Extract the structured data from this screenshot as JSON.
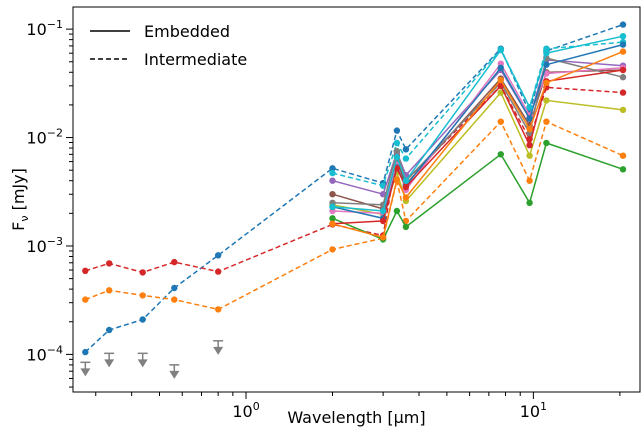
{
  "chart_data": {
    "type": "line",
    "xscale": "log",
    "yscale": "log",
    "xlim": [
      0.25,
      23.5
    ],
    "ylim": [
      4.5e-05,
      0.16
    ],
    "xlabel": "Wavelength [μm]",
    "ylabel": "Fν [mJy]",
    "xticks": [
      {
        "value": 1,
        "label": "10^0"
      },
      {
        "value": 10,
        "label": "10^1"
      }
    ],
    "yticks": [
      {
        "value": 0.0001,
        "label": "10^-4"
      },
      {
        "value": 0.001,
        "label": "10^-3"
      },
      {
        "value": 0.01,
        "label": "10^-2"
      },
      {
        "value": 0.1,
        "label": "10^-1"
      }
    ],
    "legend": {
      "position": "top-left",
      "entries": [
        {
          "label": "Embedded",
          "style": "solid"
        },
        {
          "label": "Intermediate",
          "style": "dashed"
        }
      ]
    },
    "upper_limits": {
      "color": "#808080",
      "points": [
        [
          0.276,
          7.6e-05
        ],
        [
          0.334,
          9.2e-05
        ],
        [
          0.437,
          9.2e-05
        ],
        [
          0.563,
          7.2e-05
        ],
        [
          0.8,
          0.00012
        ]
      ]
    },
    "series": [
      {
        "color": "#1f77b4",
        "style": "dashed",
        "points": [
          [
            0.276,
            0.000105
          ],
          [
            0.334,
            0.000168
          ],
          [
            0.437,
            0.00021
          ],
          [
            0.563,
            0.00041
          ],
          [
            0.8,
            0.00082
          ],
          [
            2.0,
            0.0052
          ],
          [
            3.0,
            0.0038
          ],
          [
            3.35,
            0.0116
          ],
          [
            3.6,
            0.0078
          ],
          [
            7.7,
            0.066
          ],
          [
            9.7,
            0.017
          ],
          [
            11.1,
            0.063
          ],
          [
            20.5,
            0.11
          ]
        ]
      },
      {
        "color": "#d62728",
        "style": "dashed",
        "points": [
          [
            0.276,
            0.00059
          ],
          [
            0.334,
            0.00069
          ],
          [
            0.437,
            0.00057
          ],
          [
            0.563,
            0.00071
          ],
          [
            0.8,
            0.00058
          ],
          [
            2.0,
            0.00158
          ],
          [
            3.0,
            0.00125
          ],
          [
            3.35,
            0.0068
          ],
          [
            3.6,
            0.004
          ],
          [
            7.7,
            0.03
          ],
          [
            9.7,
            0.0097
          ],
          [
            11.1,
            0.029
          ],
          [
            20.5,
            0.026
          ]
        ]
      },
      {
        "color": "#ff7f0e",
        "style": "dashed",
        "points": [
          [
            0.276,
            0.00032
          ],
          [
            0.334,
            0.00039
          ],
          [
            0.437,
            0.00035
          ],
          [
            0.563,
            0.00032
          ],
          [
            0.8,
            0.00026
          ],
          [
            2.0,
            0.00093
          ],
          [
            3.0,
            0.00118
          ],
          [
            3.35,
            0.004
          ],
          [
            3.6,
            0.0017
          ],
          [
            7.7,
            0.014
          ],
          [
            9.7,
            0.004
          ],
          [
            11.1,
            0.014
          ],
          [
            20.5,
            0.0068
          ]
        ]
      },
      {
        "color": "#17becf",
        "style": "dashed",
        "points": [
          [
            2.0,
            0.0047
          ],
          [
            3.0,
            0.0036
          ],
          [
            3.35,
            0.0089
          ],
          [
            3.6,
            0.0064
          ],
          [
            7.7,
            0.065
          ],
          [
            9.7,
            0.019
          ],
          [
            11.1,
            0.066
          ],
          [
            20.5,
            0.076
          ]
        ]
      },
      {
        "color": "#2ca02c",
        "style": "solid",
        "points": [
          [
            2.0,
            0.0018
          ],
          [
            3.0,
            0.00115
          ],
          [
            3.35,
            0.0021
          ],
          [
            3.6,
            0.0015
          ],
          [
            7.7,
            0.007
          ],
          [
            9.7,
            0.0025
          ],
          [
            11.1,
            0.0089
          ],
          [
            20.5,
            0.0051
          ]
        ]
      },
      {
        "color": "#bcbd22",
        "style": "solid",
        "points": [
          [
            2.0,
            0.0024
          ],
          [
            3.0,
            0.00195
          ],
          [
            3.35,
            0.0048
          ],
          [
            3.6,
            0.0026
          ],
          [
            7.7,
            0.026
          ],
          [
            9.7,
            0.0068
          ],
          [
            11.1,
            0.022
          ],
          [
            20.5,
            0.018
          ]
        ]
      },
      {
        "color": "#9467bd",
        "style": "solid",
        "points": [
          [
            2.0,
            0.004
          ],
          [
            3.0,
            0.003
          ],
          [
            3.35,
            0.0073
          ],
          [
            3.6,
            0.0045
          ],
          [
            7.7,
            0.042
          ],
          [
            9.7,
            0.015
          ],
          [
            11.1,
            0.052
          ],
          [
            20.5,
            0.046
          ]
        ]
      },
      {
        "color": "#8c564b",
        "style": "solid",
        "points": [
          [
            2.0,
            0.003
          ],
          [
            3.0,
            0.0022
          ],
          [
            3.35,
            0.0061
          ],
          [
            3.6,
            0.0037
          ],
          [
            7.7,
            0.035
          ],
          [
            9.7,
            0.013
          ],
          [
            11.1,
            0.04
          ],
          [
            20.5,
            0.042
          ]
        ]
      },
      {
        "color": "#e377c2",
        "style": "solid",
        "points": [
          [
            2.0,
            0.0021
          ],
          [
            3.0,
            0.002
          ],
          [
            3.35,
            0.0056
          ],
          [
            3.6,
            0.0033
          ],
          [
            7.7,
            0.048
          ],
          [
            9.7,
            0.016
          ],
          [
            11.1,
            0.039
          ],
          [
            20.5,
            0.044
          ]
        ]
      },
      {
        "color": "#7f7f7f",
        "style": "solid",
        "points": [
          [
            2.0,
            0.0025
          ],
          [
            3.0,
            0.0024
          ],
          [
            3.35,
            0.0075
          ],
          [
            3.6,
            0.004
          ],
          [
            7.7,
            0.032
          ],
          [
            9.7,
            0.011
          ],
          [
            11.1,
            0.054
          ],
          [
            20.5,
            0.036
          ]
        ]
      },
      {
        "color": "#1f77b4",
        "style": "solid",
        "points": [
          [
            2.0,
            0.0023
          ],
          [
            3.0,
            0.0018
          ],
          [
            3.35,
            0.0053
          ],
          [
            3.6,
            0.0036
          ],
          [
            7.7,
            0.044
          ],
          [
            9.7,
            0.015
          ],
          [
            11.1,
            0.047
          ],
          [
            20.5,
            0.072
          ]
        ]
      },
      {
        "color": "#d62728",
        "style": "solid",
        "points": [
          [
            2.0,
            0.0016
          ],
          [
            3.0,
            0.0017
          ],
          [
            3.35,
            0.0052
          ],
          [
            3.6,
            0.0035
          ],
          [
            7.7,
            0.03
          ],
          [
            9.7,
            0.0085
          ],
          [
            11.1,
            0.033
          ],
          [
            20.5,
            0.042
          ]
        ]
      },
      {
        "color": "#ff7f0e",
        "style": "solid",
        "points": [
          [
            2.0,
            0.0016
          ],
          [
            3.0,
            0.0012
          ],
          [
            3.35,
            0.0041
          ],
          [
            3.6,
            0.0028
          ],
          [
            7.7,
            0.034
          ],
          [
            9.7,
            0.012
          ],
          [
            11.1,
            0.032
          ],
          [
            20.5,
            0.062
          ]
        ]
      },
      {
        "color": "#17becf",
        "style": "solid",
        "points": [
          [
            2.0,
            0.0023
          ],
          [
            3.0,
            0.0021
          ],
          [
            3.35,
            0.0066
          ],
          [
            3.6,
            0.004
          ],
          [
            7.7,
            0.064
          ],
          [
            9.7,
            0.019
          ],
          [
            11.1,
            0.06
          ],
          [
            20.5,
            0.086
          ]
        ]
      }
    ]
  }
}
